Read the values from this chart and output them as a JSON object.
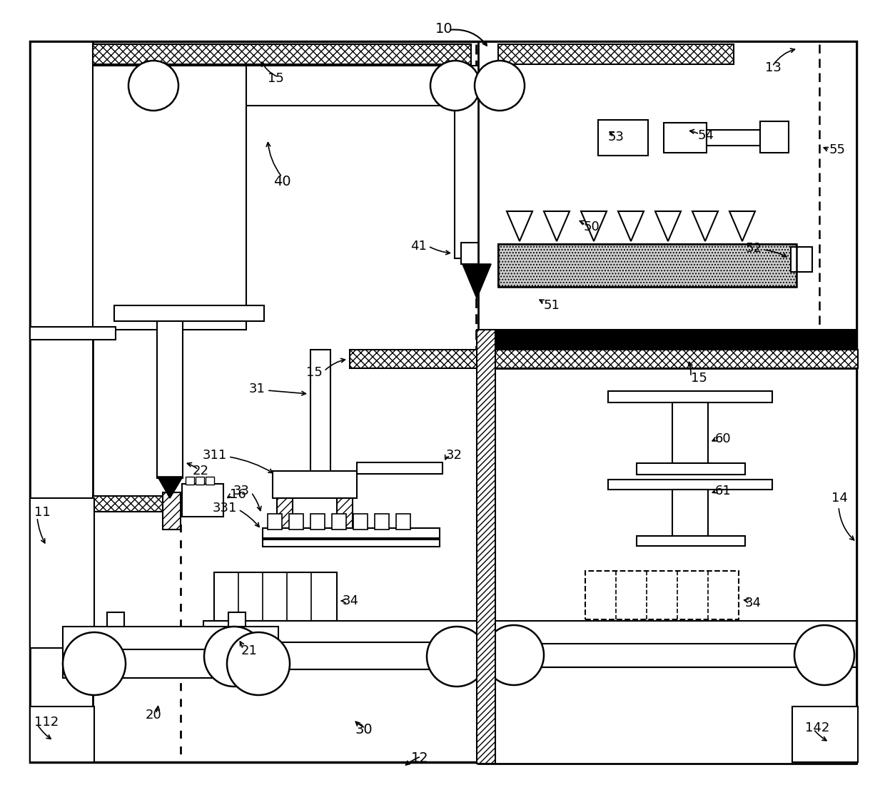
{
  "fig_width": 12.4,
  "fig_height": 11.0,
  "dpi": 100,
  "bg_color": "#ffffff"
}
